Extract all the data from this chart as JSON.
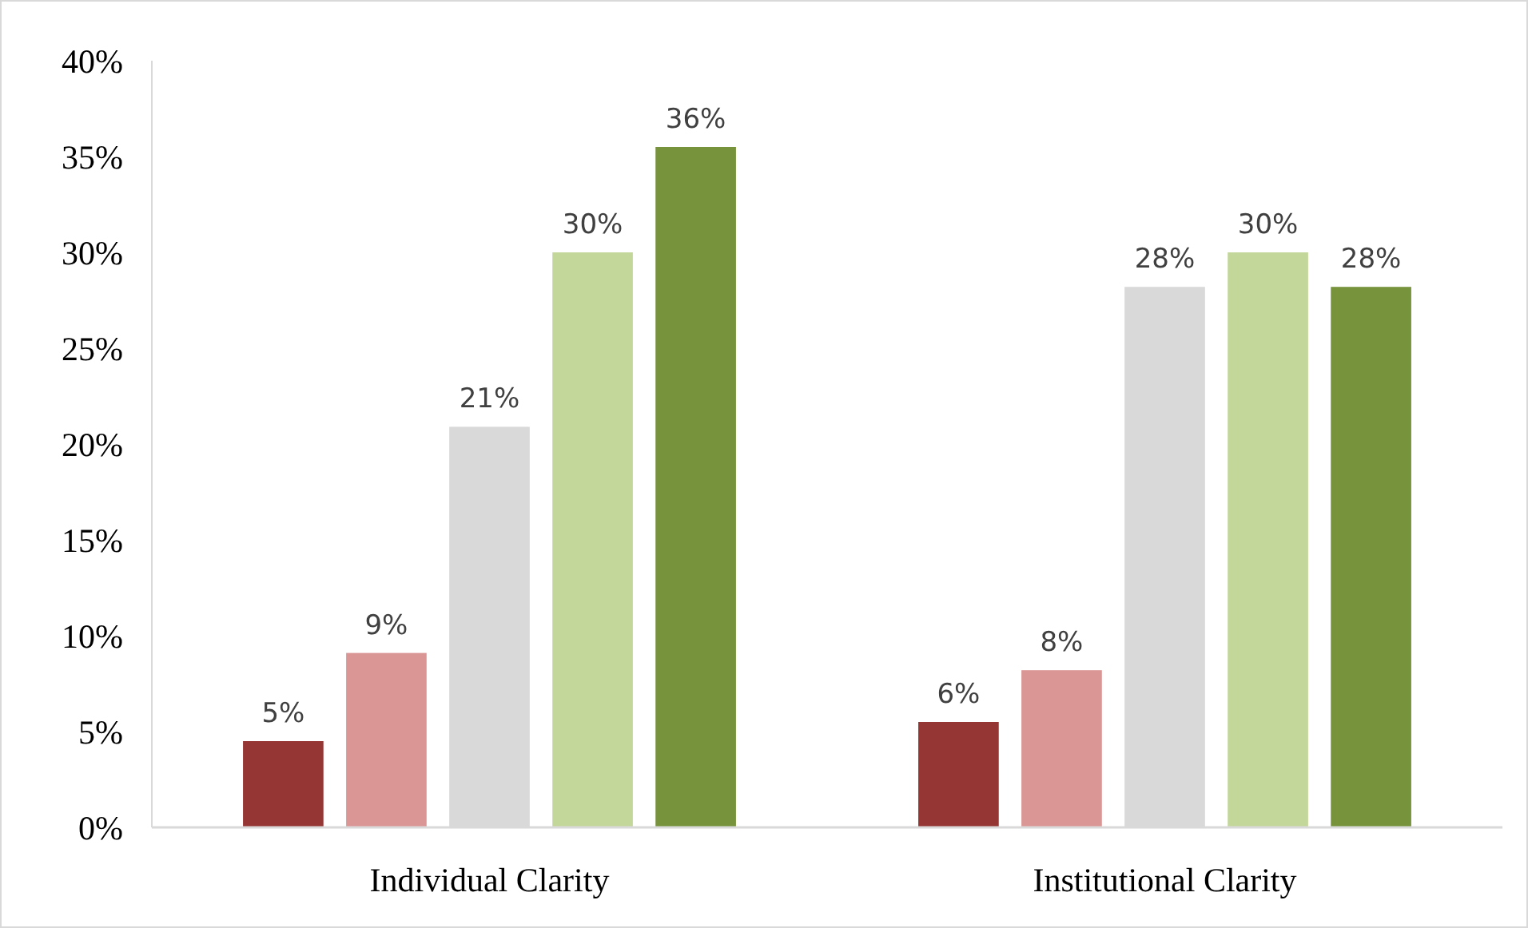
{
  "chart_data": {
    "type": "bar",
    "categories": [
      "Individual Clarity",
      "Institutional Clarity"
    ],
    "series": [
      {
        "color": "#963634",
        "values": [
          4.5,
          5.5
        ],
        "value_labels": [
          "5%",
          "6%"
        ]
      },
      {
        "color": "#da9694",
        "values": [
          9.1,
          8.2
        ],
        "value_labels": [
          "9%",
          "8%"
        ]
      },
      {
        "color": "#d9d9d9",
        "values": [
          20.9,
          28.2
        ],
        "value_labels": [
          "21%",
          "28%"
        ]
      },
      {
        "color": "#c4d79b",
        "values": [
          30,
          30
        ],
        "value_labels": [
          "30%",
          "30%"
        ]
      },
      {
        "color": "#77933c",
        "values": [
          35.5,
          28.2
        ],
        "value_labels": [
          "36%",
          "28%"
        ]
      }
    ],
    "ylim": [
      0,
      40
    ],
    "yticks": [
      {
        "value": 0,
        "label": "0%"
      },
      {
        "value": 5,
        "label": "5%"
      },
      {
        "value": 10,
        "label": "10%"
      },
      {
        "value": 15,
        "label": "15%"
      },
      {
        "value": 20,
        "label": "20%"
      },
      {
        "value": 25,
        "label": "25%"
      },
      {
        "value": 30,
        "label": "30%"
      },
      {
        "value": 35,
        "label": "35%"
      },
      {
        "value": 40,
        "label": "40%"
      }
    ],
    "grid": false
  }
}
